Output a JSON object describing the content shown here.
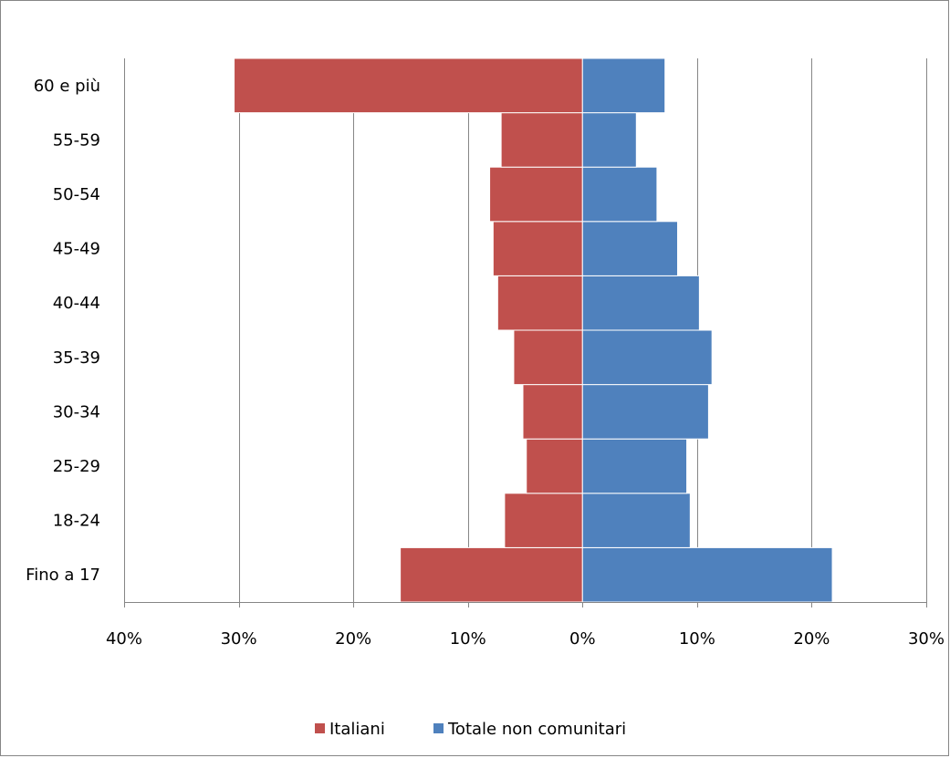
{
  "chart_data": {
    "type": "bar",
    "orientation": "horizontal",
    "layout": "population-pyramid",
    "categories": [
      "Fino a 17",
      "18-24",
      "25-29",
      "30-34",
      "35-39",
      "40-44",
      "45-49",
      "50-54",
      "55-59",
      "60 e più"
    ],
    "series": [
      {
        "name": "Italiani",
        "color": "#C0504D",
        "side": "left",
        "values": [
          15.9,
          6.8,
          4.9,
          5.2,
          6.0,
          7.4,
          7.8,
          8.1,
          7.1,
          30.4
        ]
      },
      {
        "name": "Totale non comunitari",
        "color": "#4F81BD",
        "side": "right",
        "values": [
          21.8,
          9.4,
          9.1,
          11.0,
          11.3,
          10.2,
          8.3,
          6.5,
          4.7,
          7.2
        ]
      }
    ],
    "xlim": [
      -40,
      30
    ],
    "x_ticks": [
      -40,
      -30,
      -20,
      -10,
      0,
      10,
      20,
      30
    ],
    "x_tick_labels": [
      "40%",
      "30%",
      "20%",
      "10%",
      "0%",
      "10%",
      "20%",
      "30%"
    ],
    "title": "",
    "xlabel": "",
    "ylabel": "",
    "grid": "vertical",
    "legend_position": "bottom"
  }
}
